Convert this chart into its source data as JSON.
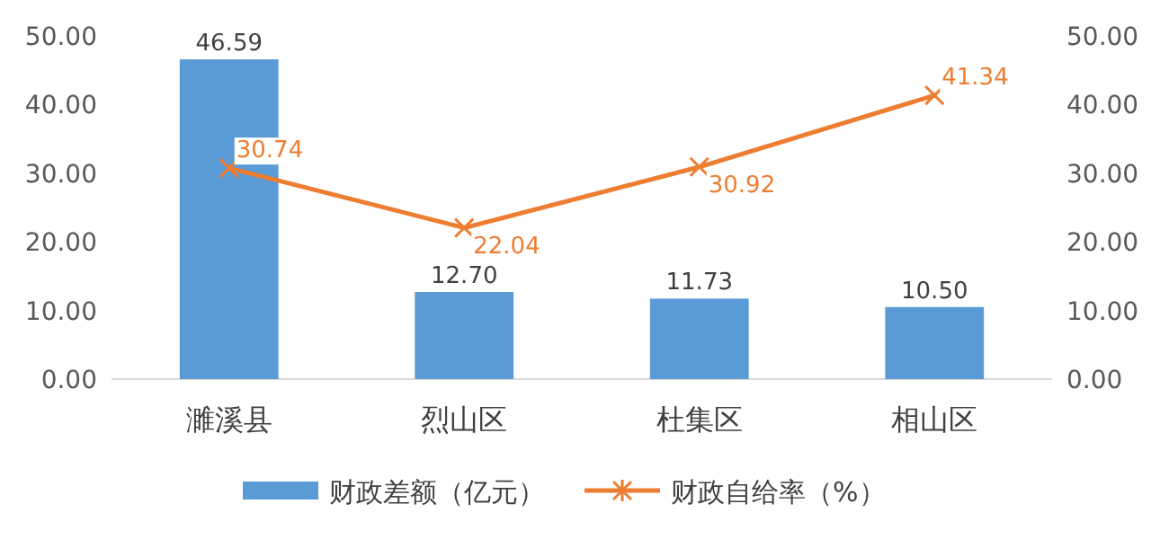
{
  "chart_data": {
    "type": "bar",
    "categories": [
      "濉溪县",
      "烈山区",
      "杜集区",
      "相山区"
    ],
    "series": [
      {
        "name": "财政差额（亿元）",
        "color": "#5b9bd5",
        "values": [
          46.59,
          12.7,
          11.73,
          10.5
        ],
        "value_labels": [
          "46.59",
          "12.70",
          "11.73",
          "10.50"
        ]
      },
      {
        "name": "财政自给率（%）",
        "type": "line",
        "axis": "y2",
        "color": "#ed7d31",
        "values": [
          30.74,
          22.04,
          30.92,
          41.34
        ],
        "value_labels": [
          "30.74",
          "22.04",
          "30.92",
          "41.34"
        ],
        "marker": "cross",
        "line_style": "solid"
      }
    ],
    "ylim": [
      0,
      50
    ],
    "yticks": [
      {
        "value": 0,
        "label": "0.00"
      },
      {
        "value": 10,
        "label": "10.00"
      },
      {
        "value": 20,
        "label": "20.00"
      },
      {
        "value": 30,
        "label": "30.00"
      },
      {
        "value": 40,
        "label": "40.00"
      },
      {
        "value": 50,
        "label": "50.00"
      }
    ],
    "y2lim": [
      0,
      50
    ],
    "y2ticks": [
      {
        "value": 0,
        "label": "0.00"
      },
      {
        "value": 10,
        "label": "10.00"
      },
      {
        "value": 20,
        "label": "20.00"
      },
      {
        "value": 30,
        "label": "30.00"
      },
      {
        "value": 40,
        "label": "40.00"
      },
      {
        "value": 50,
        "label": "50.00"
      }
    ],
    "grid": false,
    "legend": "bottom"
  }
}
